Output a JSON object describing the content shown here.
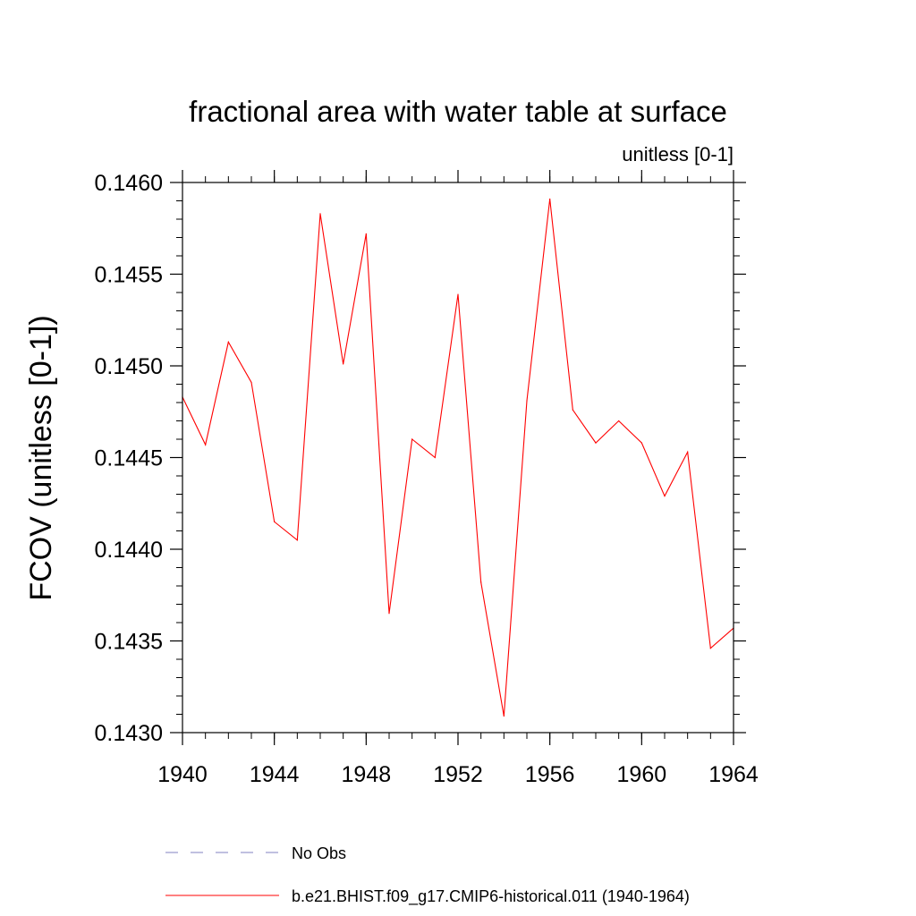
{
  "chart_data": {
    "type": "line",
    "title": "fractional area with water table at surface",
    "subtitle": "unitless [0-1]",
    "xlabel": "",
    "ylabel": "FCOV  (unitless [0-1])",
    "xlim": [
      1940,
      1964
    ],
    "ylim": [
      0.143,
      0.146
    ],
    "x_ticks": [
      1940,
      1944,
      1948,
      1952,
      1956,
      1960,
      1964
    ],
    "x_tick_labels": [
      "1940",
      "1944",
      "1948",
      "1952",
      "1956",
      "1960",
      "1964"
    ],
    "y_ticks": [
      0.143,
      0.1435,
      0.144,
      0.1445,
      0.145,
      0.1455,
      0.146
    ],
    "y_tick_labels": [
      "0.1430",
      "0.1435",
      "0.1440",
      "0.1445",
      "0.1450",
      "0.1455",
      "0.1460"
    ],
    "x_minor_step": 1,
    "y_minor_step": 0.0001,
    "grid": false,
    "legend_position": "bottom",
    "series": [
      {
        "name": "b.e21.BHIST.f09_g17.CMIP6-historical.011 (1940-1964)",
        "color": "#ff0000",
        "style": "solid",
        "x": [
          1940,
          1941,
          1942,
          1943,
          1944,
          1945,
          1946,
          1947,
          1948,
          1949,
          1950,
          1951,
          1952,
          1953,
          1954,
          1955,
          1956,
          1957,
          1958,
          1959,
          1960,
          1961,
          1962,
          1963,
          1964
        ],
        "values": [
          0.14483,
          0.14457,
          0.14513,
          0.14491,
          0.14415,
          0.14405,
          0.14583,
          0.14501,
          0.14572,
          0.14365,
          0.1446,
          0.1445,
          0.14539,
          0.14382,
          0.14309,
          0.14481,
          0.14591,
          0.14476,
          0.14458,
          0.1447,
          0.14458,
          0.14429,
          0.14453,
          0.14346,
          0.14357
        ]
      }
    ],
    "legend": [
      {
        "label": "No Obs",
        "color": "#8080c0",
        "style": "dashed"
      },
      {
        "label": "b.e21.BHIST.f09_g17.CMIP6-historical.011 (1940-1964)",
        "color": "#ff0000",
        "style": "solid"
      }
    ]
  }
}
